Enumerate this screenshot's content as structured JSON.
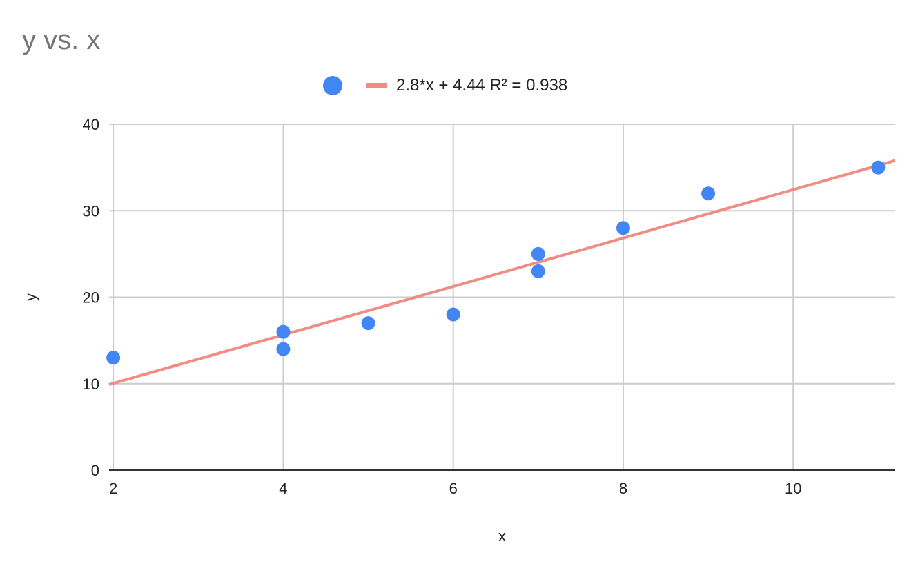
{
  "chart_data": {
    "type": "scatter",
    "title": "y vs. x",
    "xlabel": "x",
    "ylabel": "y",
    "xlim": [
      1.95,
      11.2
    ],
    "ylim": [
      0,
      40
    ],
    "x_ticks": [
      2,
      4,
      6,
      8,
      10
    ],
    "y_ticks": [
      0,
      10,
      20,
      30,
      40
    ],
    "grid": true,
    "legend_position": "top",
    "series": [
      {
        "type": "scatter",
        "color": "#4285f4",
        "points": [
          {
            "x": 2,
            "y": 13
          },
          {
            "x": 4,
            "y": 16
          },
          {
            "x": 4,
            "y": 14
          },
          {
            "x": 5,
            "y": 17
          },
          {
            "x": 6,
            "y": 18
          },
          {
            "x": 7,
            "y": 25
          },
          {
            "x": 7,
            "y": 23
          },
          {
            "x": 8,
            "y": 28
          },
          {
            "x": 9,
            "y": 32
          },
          {
            "x": 11,
            "y": 35
          }
        ]
      },
      {
        "type": "trendline",
        "name": "2.8*x + 4.44 R² = 0.938",
        "color": "#f28b82",
        "slope": 2.8,
        "intercept": 4.44
      }
    ]
  }
}
